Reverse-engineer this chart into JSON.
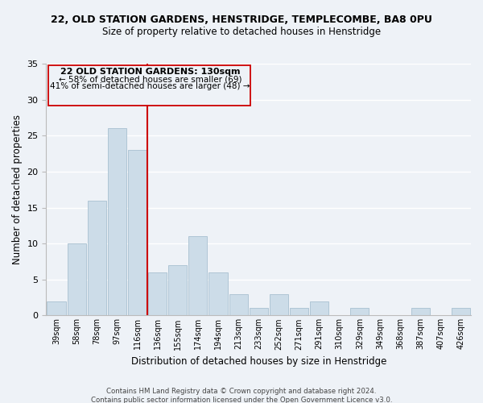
{
  "title_line1": "22, OLD STATION GARDENS, HENSTRIDGE, TEMPLECOMBE, BA8 0PU",
  "title_line2": "Size of property relative to detached houses in Henstridge",
  "xlabel": "Distribution of detached houses by size in Henstridge",
  "ylabel": "Number of detached properties",
  "bin_labels": [
    "39sqm",
    "58sqm",
    "78sqm",
    "97sqm",
    "116sqm",
    "136sqm",
    "155sqm",
    "174sqm",
    "194sqm",
    "213sqm",
    "233sqm",
    "252sqm",
    "271sqm",
    "291sqm",
    "310sqm",
    "329sqm",
    "349sqm",
    "368sqm",
    "387sqm",
    "407sqm",
    "426sqm"
  ],
  "bar_heights": [
    2,
    10,
    16,
    26,
    23,
    6,
    7,
    11,
    6,
    3,
    1,
    3,
    1,
    2,
    0,
    1,
    0,
    0,
    1,
    0,
    1
  ],
  "bar_color": "#ccdce8",
  "bar_edge_color": "#a8c0d0",
  "vline_color": "#cc0000",
  "ylim": [
    0,
    35
  ],
  "yticks": [
    0,
    5,
    10,
    15,
    20,
    25,
    30,
    35
  ],
  "annotation_title": "22 OLD STATION GARDENS: 130sqm",
  "annotation_line1": "← 58% of detached houses are smaller (69)",
  "annotation_line2": "41% of semi-detached houses are larger (48) →",
  "footnote1": "Contains HM Land Registry data © Crown copyright and database right 2024.",
  "footnote2": "Contains public sector information licensed under the Open Government Licence v3.0.",
  "bg_color": "#eef2f7"
}
